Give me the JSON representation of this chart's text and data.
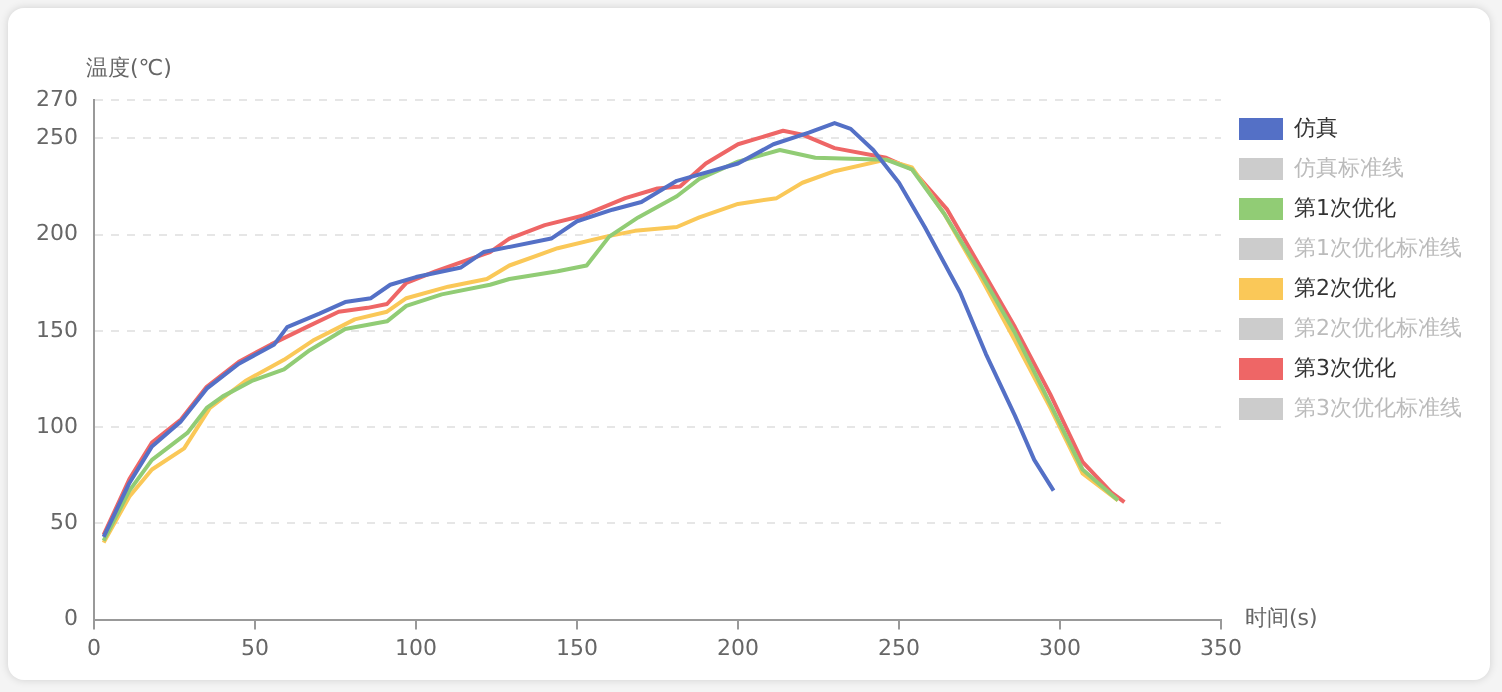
{
  "chart_data": {
    "type": "line",
    "xlabel": "时间(s)",
    "ylabel": "温度(℃)",
    "xlim": [
      0,
      350
    ],
    "xticks": [
      0,
      50,
      100,
      150,
      200,
      250,
      300,
      350
    ],
    "ylim": [
      0,
      270
    ],
    "yticks": [
      0,
      50,
      100,
      150,
      200,
      250,
      270
    ],
    "grid": "y",
    "legend": "right",
    "marker": "none",
    "line_style": "solid",
    "series": [
      {
        "name": "仿真",
        "color": "#5470c6",
        "x": [
          3,
          11,
          18,
          27,
          35,
          45,
          56,
          60,
          70,
          78,
          86,
          92,
          100,
          114,
          121,
          142,
          150,
          161,
          170,
          181,
          200,
          211,
          222,
          230,
          235,
          242,
          250,
          258,
          269,
          277,
          286,
          292,
          298
        ],
        "values": [
          43,
          71,
          90,
          103,
          120,
          133,
          143,
          152,
          159,
          165,
          167,
          174,
          178,
          183,
          191,
          198,
          207,
          213,
          217,
          228,
          237,
          247,
          253,
          258,
          255,
          244,
          227,
          204,
          170,
          138,
          106,
          83,
          67
        ]
      },
      {
        "name": "仿真标准线",
        "color": "#cccccc"
      },
      {
        "name": "第1次优化",
        "color": "#91cc75",
        "x": [
          3,
          11,
          18,
          29,
          35,
          40,
          49,
          59,
          67,
          78,
          91,
          97,
          108,
          123,
          129,
          144,
          153,
          160,
          169,
          181,
          188,
          200,
          213,
          224,
          246,
          254,
          264,
          275,
          286,
          297,
          307,
          318
        ],
        "values": [
          41,
          67,
          83,
          97,
          110,
          116,
          124,
          130,
          140,
          151,
          155,
          163,
          169,
          174,
          177,
          181,
          184,
          199,
          209,
          220,
          229,
          238,
          244,
          240,
          239,
          234,
          211,
          181,
          149,
          112,
          78,
          62
        ]
      },
      {
        "name": "第1次优化标准线",
        "color": "#cccccc"
      },
      {
        "name": "第2次优化",
        "color": "#fac858",
        "x": [
          3,
          11,
          18,
          28,
          36,
          47,
          59,
          68,
          81,
          91,
          97,
          110,
          122,
          129,
          144,
          159,
          168,
          181,
          188,
          200,
          212,
          220,
          230,
          246,
          254,
          264,
          275,
          286,
          297,
          307,
          318
        ],
        "values": [
          40,
          64,
          78,
          89,
          110,
          124,
          135,
          145,
          156,
          160,
          167,
          173,
          177,
          184,
          193,
          199,
          202,
          204,
          209,
          216,
          219,
          227,
          233,
          239,
          235,
          211,
          179,
          145,
          110,
          76,
          62
        ]
      },
      {
        "name": "第2次优化标准线",
        "color": "#cccccc"
      },
      {
        "name": "第3次优化",
        "color": "#ee6666",
        "x": [
          3,
          11,
          18,
          27,
          35,
          45,
          55,
          66,
          76,
          85,
          91,
          97,
          106,
          123,
          129,
          140,
          152,
          165,
          175,
          182,
          190,
          200,
          214,
          220,
          230,
          246,
          254,
          265,
          275,
          286,
          297,
          307,
          316,
          320
        ],
        "values": [
          44,
          73,
          92,
          104,
          121,
          134,
          143,
          152,
          160,
          162,
          164,
          175,
          181,
          191,
          198,
          205,
          210,
          219,
          224,
          225,
          237,
          247,
          254,
          252,
          245,
          240,
          234,
          213,
          184,
          152,
          117,
          82,
          66,
          61
        ]
      },
      {
        "name": "第3次优化标准线",
        "color": "#cccccc"
      }
    ]
  }
}
